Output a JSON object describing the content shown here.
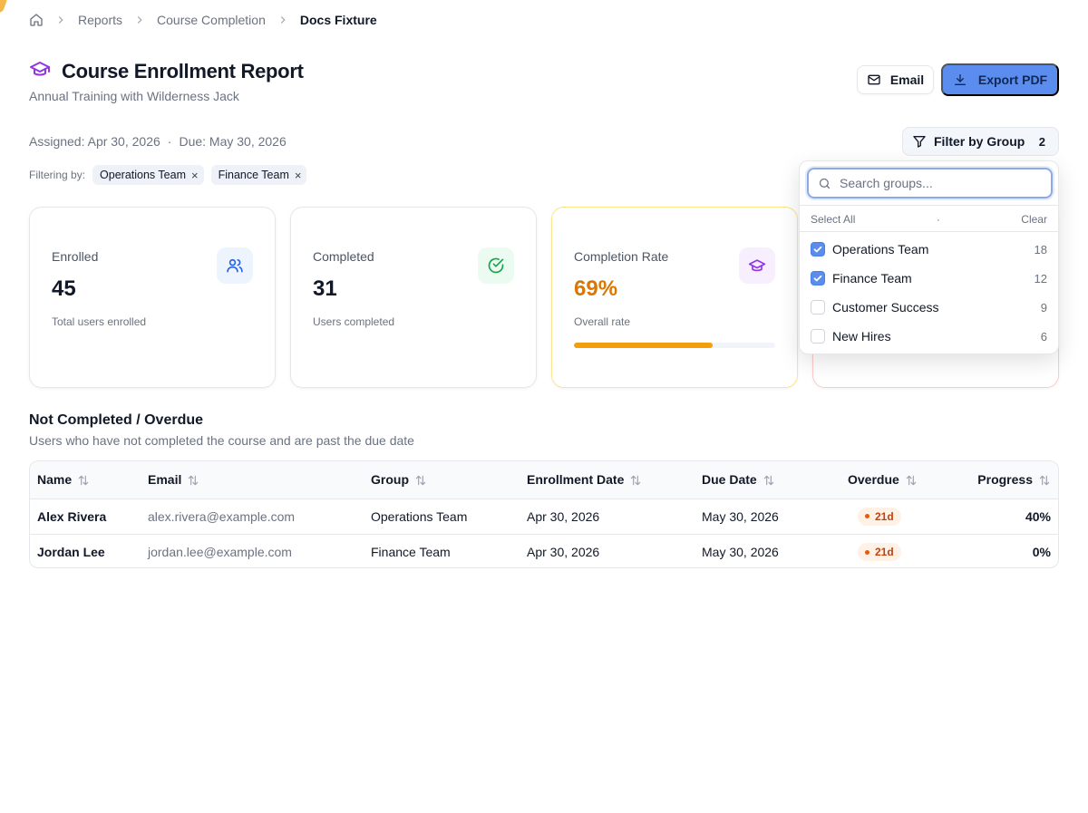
{
  "breadcrumb": {
    "items": [
      "Reports",
      "Course Completion"
    ],
    "current": "Docs Fixture"
  },
  "header": {
    "title": "Course Enrollment Report",
    "subtitle": "Annual Training with Wilderness Jack",
    "email_label": "Email",
    "export_label": "Export PDF"
  },
  "meta": {
    "assigned": "Assigned: Apr 30, 2026",
    "separator": "·",
    "due": "Due: May 30, 2026"
  },
  "filter": {
    "button_label": "Filter by Group",
    "count": "2",
    "filtering_by_label": "Filtering by:",
    "chips": [
      "Operations Team",
      "Finance Team"
    ],
    "chip_remove": "×"
  },
  "stats": {
    "enrolled": {
      "label": "Enrolled",
      "value": "45",
      "sub": "Total users enrolled"
    },
    "completed": {
      "label": "Completed",
      "value": "31",
      "sub": "Users completed"
    },
    "rate": {
      "label": "Completion Rate",
      "value": "69%",
      "sub": "Overall rate",
      "progress": 0.69
    }
  },
  "section": {
    "title": "Not Completed / Overdue",
    "subtitle": "Users who have not completed the course and are past the due date"
  },
  "table": {
    "headers": [
      "Name",
      "Email",
      "Group",
      "Enrollment Date",
      "Due Date",
      "Overdue",
      "Progress"
    ],
    "rows": [
      {
        "name": "Alex Rivera",
        "email": "alex.rivera@example.com",
        "group": "Operations Team",
        "enrolled": "Apr 30, 2026",
        "due": "May 30, 2026",
        "overdue": "21d",
        "progress": "40%"
      },
      {
        "name": "Jordan Lee",
        "email": "jordan.lee@example.com",
        "group": "Finance Team",
        "enrolled": "Apr 30, 2026",
        "due": "May 30, 2026",
        "overdue": "21d",
        "progress": "0%"
      }
    ]
  },
  "dropdown": {
    "search_placeholder": "Search groups...",
    "select_all": "Select All",
    "separator": "·",
    "clear": "Clear",
    "groups": [
      {
        "name": "Operations Team",
        "count": "18",
        "checked": true
      },
      {
        "name": "Finance Team",
        "count": "12",
        "checked": true
      },
      {
        "name": "Customer Success",
        "count": "9",
        "checked": false
      },
      {
        "name": "New Hires",
        "count": "6",
        "checked": false
      }
    ]
  },
  "colors": {
    "accent": "#5b8def",
    "warning": "#d97706",
    "success": "#16a34a",
    "purple": "#9333ea"
  }
}
